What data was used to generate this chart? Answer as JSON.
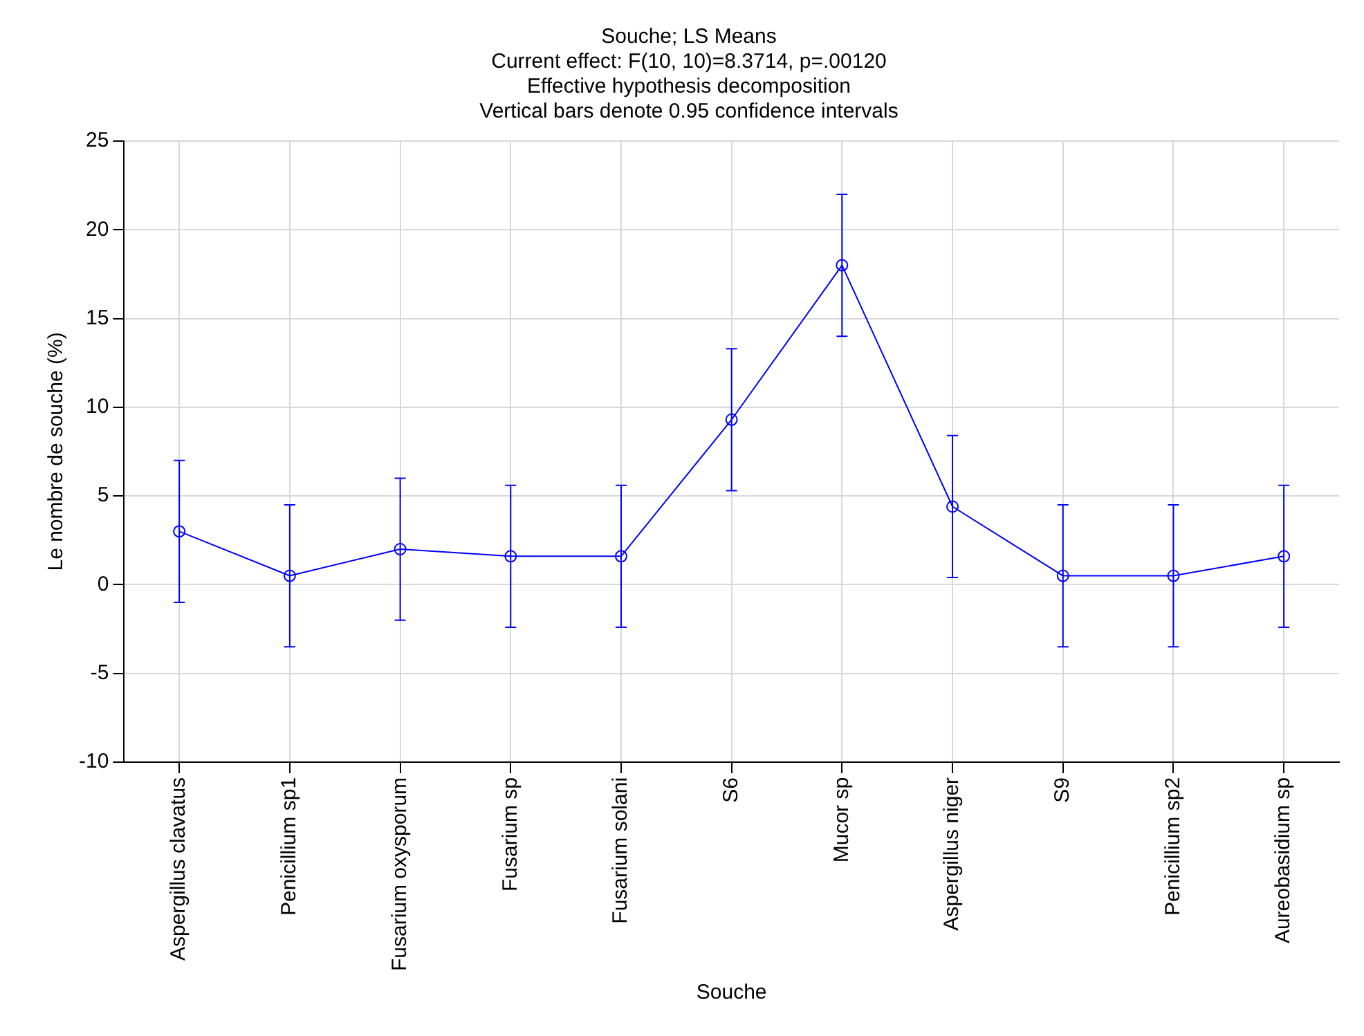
{
  "chart_data": {
    "type": "line",
    "title": "Souche; LS Means",
    "subtitle": "Current effect: F(10, 10)=8.3714, p=.00120",
    "annotations": [
      "Effective hypothesis decomposition",
      "Vertical bars denote 0.95 confidence intervals"
    ],
    "xlabel": "Souche",
    "ylabel": "Le nombre de souche (%)",
    "categories": [
      "Aspergillus clavatus",
      "Penicillium sp1",
      "Fusarium oxysporum",
      "Fusarium sp",
      "Fusarium solani",
      "S6",
      "Mucor sp",
      "Aspergillus niger",
      "S9",
      "Penicillium sp2",
      "Aureobasidium sp"
    ],
    "series": [
      {
        "color": "#0000ff",
        "values": [
          3.0,
          0.5,
          2.0,
          1.6,
          1.6,
          9.3,
          18.0,
          4.4,
          0.5,
          0.5,
          1.6
        ],
        "errors": [
          4.0,
          4.0,
          4.0,
          4.0,
          4.0,
          4.0,
          4.0,
          4.0,
          4.0,
          4.0,
          4.0
        ]
      }
    ],
    "ylim": [
      -10,
      25
    ],
    "yticks": [
      -10,
      -5,
      0,
      5,
      10,
      15,
      20,
      25
    ],
    "grid": true,
    "marker": "circle",
    "line_style": "solid",
    "legend": false
  }
}
